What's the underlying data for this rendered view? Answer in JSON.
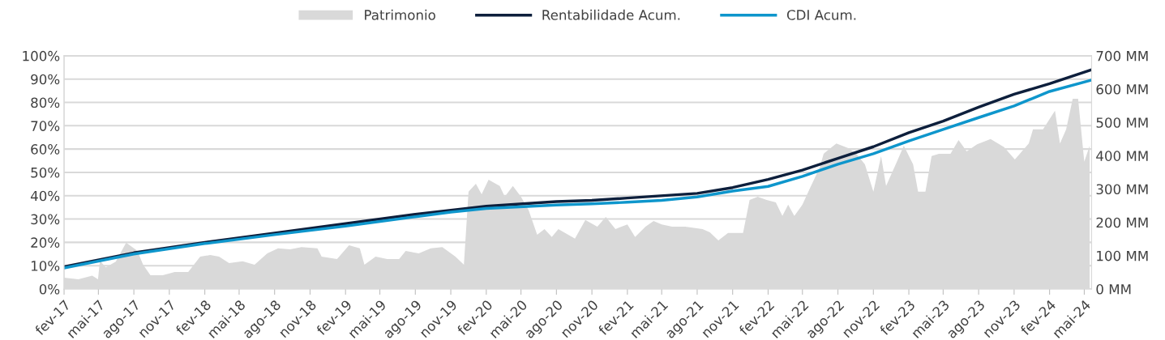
{
  "chart_data": {
    "type": "line",
    "xlim": [
      "2017-02-01",
      "2024-05-20"
    ],
    "xticks": [
      {
        "value": "2017-02-01",
        "label": "fev-17"
      },
      {
        "value": "2017-05-01",
        "label": "mai-17"
      },
      {
        "value": "2017-08-01",
        "label": "ago-17"
      },
      {
        "value": "2017-11-01",
        "label": "nov-17"
      },
      {
        "value": "2018-02-01",
        "label": "fev-18"
      },
      {
        "value": "2018-05-01",
        "label": "mai-18"
      },
      {
        "value": "2018-08-01",
        "label": "ago-18"
      },
      {
        "value": "2018-11-01",
        "label": "nov-18"
      },
      {
        "value": "2019-02-01",
        "label": "fev-19"
      },
      {
        "value": "2019-05-01",
        "label": "mai-19"
      },
      {
        "value": "2019-08-01",
        "label": "ago-19"
      },
      {
        "value": "2019-11-01",
        "label": "nov-19"
      },
      {
        "value": "2020-02-01",
        "label": "fev-20"
      },
      {
        "value": "2020-05-01",
        "label": "mai-20"
      },
      {
        "value": "2020-08-01",
        "label": "ago-20"
      },
      {
        "value": "2020-11-01",
        "label": "nov-20"
      },
      {
        "value": "2021-02-01",
        "label": "fev-21"
      },
      {
        "value": "2021-05-01",
        "label": "mai-21"
      },
      {
        "value": "2021-08-01",
        "label": "ago-21"
      },
      {
        "value": "2021-11-01",
        "label": "nov-21"
      },
      {
        "value": "2022-02-01",
        "label": "fev-22"
      },
      {
        "value": "2022-05-01",
        "label": "mai-22"
      },
      {
        "value": "2022-08-01",
        "label": "ago-22"
      },
      {
        "value": "2022-11-01",
        "label": "nov-22"
      },
      {
        "value": "2023-02-01",
        "label": "fev-23"
      },
      {
        "value": "2023-05-01",
        "label": "mai-23"
      },
      {
        "value": "2023-08-01",
        "label": "ago-23"
      },
      {
        "value": "2023-11-01",
        "label": "nov-23"
      },
      {
        "value": "2024-02-01",
        "label": "fev-24"
      },
      {
        "value": "2024-05-01",
        "label": "mai-24"
      }
    ],
    "ylim": [
      0,
      100
    ],
    "yticks": [
      {
        "value": 0,
        "label": "0%"
      },
      {
        "value": 10,
        "label": "10%"
      },
      {
        "value": 20,
        "label": "20%"
      },
      {
        "value": 30,
        "label": "30%"
      },
      {
        "value": 40,
        "label": "40%"
      },
      {
        "value": 50,
        "label": "50%"
      },
      {
        "value": 60,
        "label": "60%"
      },
      {
        "value": 70,
        "label": "70%"
      },
      {
        "value": 80,
        "label": "80%"
      },
      {
        "value": 90,
        "label": "90%"
      },
      {
        "value": 100,
        "label": "100%"
      }
    ],
    "y2lim": [
      0,
      700
    ],
    "y2ticks": [
      {
        "value": 0,
        "label": "0 MM"
      },
      {
        "value": 100,
        "label": "100 MM"
      },
      {
        "value": 200,
        "label": "200 MM"
      },
      {
        "value": 300,
        "label": "300 MM"
      },
      {
        "value": 400,
        "label": "400 MM"
      },
      {
        "value": 500,
        "label": "500 MM"
      },
      {
        "value": 600,
        "label": "600 MM"
      },
      {
        "value": 700,
        "label": "700 MM"
      }
    ],
    "grid": "y",
    "legend": "top",
    "series": [
      {
        "name": "Patrimonio",
        "type": "area",
        "axis": "y2",
        "color": "#d9d9d9",
        "x": [
          "2017-02-01",
          "2017-03-10",
          "2017-04-15",
          "2017-04-30",
          "2017-05-05",
          "2017-05-20",
          "2017-06-15",
          "2017-07-12",
          "2017-08-10",
          "2017-08-25",
          "2017-09-13",
          "2017-10-15",
          "2017-11-15",
          "2017-12-20",
          "2018-01-20",
          "2018-02-15",
          "2018-03-10",
          "2018-04-05",
          "2018-05-10",
          "2018-06-10",
          "2018-07-13",
          "2018-08-10",
          "2018-09-10",
          "2018-10-10",
          "2018-11-20",
          "2018-12-01",
          "2019-01-10",
          "2019-02-10",
          "2019-03-10",
          "2019-03-22",
          "2019-04-20",
          "2019-05-20",
          "2019-06-20",
          "2019-07-07",
          "2019-08-10",
          "2019-09-10",
          "2019-10-10",
          "2019-11-13",
          "2019-12-05",
          "2019-12-17",
          "2020-01-05",
          "2020-01-20",
          "2020-02-07",
          "2020-03-07",
          "2020-03-20",
          "2020-04-10",
          "2020-05-01",
          "2020-05-21",
          "2020-06-12",
          "2020-07-01",
          "2020-07-20",
          "2020-08-06",
          "2020-09-18",
          "2020-10-15",
          "2020-11-15",
          "2020-12-07",
          "2021-01-01",
          "2021-02-01",
          "2021-02-21",
          "2021-03-20",
          "2021-04-10",
          "2021-05-01",
          "2021-05-28",
          "2021-07-01",
          "2021-08-15",
          "2021-09-03",
          "2021-09-25",
          "2021-10-20",
          "2021-11-28",
          "2021-12-15",
          "2022-01-05",
          "2022-01-28",
          "2022-02-21",
          "2022-03-10",
          "2022-03-25",
          "2022-04-10",
          "2022-05-01",
          "2022-05-20",
          "2022-06-15",
          "2022-06-25",
          "2022-07-28",
          "2022-08-28",
          "2022-09-18",
          "2022-10-10",
          "2022-11-01",
          "2022-11-21",
          "2022-12-04",
          "2023-01-01",
          "2023-01-19",
          "2023-02-12",
          "2023-02-25",
          "2023-03-16",
          "2023-04-01",
          "2023-04-20",
          "2023-05-20",
          "2023-06-10",
          "2023-07-01",
          "2023-07-28",
          "2023-09-01",
          "2023-10-06",
          "2023-11-03",
          "2023-12-09",
          "2023-12-20",
          "2024-01-15",
          "2024-02-15",
          "2024-02-28",
          "2024-03-15",
          "2024-04-01",
          "2024-04-15",
          "2024-05-01",
          "2024-05-15"
        ],
        "values": [
          34,
          29,
          40,
          29,
          85,
          65,
          82,
          139,
          115,
          73,
          41,
          41,
          51,
          51,
          97,
          102,
          97,
          78,
          83,
          73,
          107,
          122,
          119,
          126,
          122,
          97,
          90,
          131,
          122,
          73,
          97,
          90,
          90,
          114,
          107,
          122,
          126,
          97,
          73,
          292,
          316,
          284,
          328,
          309,
          277,
          309,
          277,
          236,
          163,
          180,
          156,
          180,
          151,
          207,
          187,
          216,
          180,
          194,
          156,
          187,
          204,
          194,
          187,
          187,
          180,
          170,
          146,
          168,
          168,
          267,
          277,
          267,
          260,
          219,
          253,
          219,
          253,
          301,
          365,
          406,
          437,
          423,
          406,
          374,
          292,
          399,
          309,
          382,
          430,
          374,
          292,
          292,
          399,
          406,
          406,
          447,
          413,
          434,
          450,
          426,
          389,
          437,
          479,
          479,
          535,
          437,
          479,
          571,
          571,
          382,
          430
        ]
      },
      {
        "name": "Rentabilidade Acum.",
        "color": "#0d1f3c",
        "x": [
          "2017-02-01",
          "2017-08-01",
          "2018-02-01",
          "2018-08-01",
          "2019-02-01",
          "2019-08-01",
          "2020-02-01",
          "2020-08-01",
          "2020-11-01",
          "2021-02-01",
          "2021-08-01",
          "2021-11-01",
          "2022-02-01",
          "2022-05-01",
          "2022-08-01",
          "2022-11-01",
          "2023-02-01",
          "2023-05-01",
          "2023-08-01",
          "2023-11-01",
          "2024-02-01",
          "2024-05-20"
        ],
        "values": [
          9.5,
          15.5,
          20,
          24,
          28,
          32,
          35.5,
          37.5,
          38,
          39,
          41,
          43.5,
          47,
          51,
          56,
          61,
          67,
          72,
          78,
          83.5,
          88,
          94
        ]
      },
      {
        "name": "CDI Acum.",
        "color": "#0e96cc",
        "x": [
          "2017-02-01",
          "2017-08-01",
          "2018-02-01",
          "2018-08-01",
          "2019-02-01",
          "2019-08-01",
          "2019-11-01",
          "2020-02-01",
          "2020-08-01",
          "2020-11-01",
          "2021-02-01",
          "2021-05-01",
          "2021-08-01",
          "2021-11-01",
          "2022-02-01",
          "2022-05-01",
          "2022-08-01",
          "2022-11-01",
          "2023-02-01",
          "2023-05-01",
          "2023-08-01",
          "2023-11-01",
          "2024-02-01",
          "2024-05-20"
        ],
        "values": [
          9,
          15,
          19.5,
          23.3,
          27,
          31,
          33,
          34.5,
          36,
          36.5,
          37.2,
          38,
          39.5,
          42,
          44,
          48.3,
          53.5,
          58,
          63.5,
          68.4,
          73.5,
          78.5,
          84.7,
          89.6
        ]
      }
    ]
  }
}
